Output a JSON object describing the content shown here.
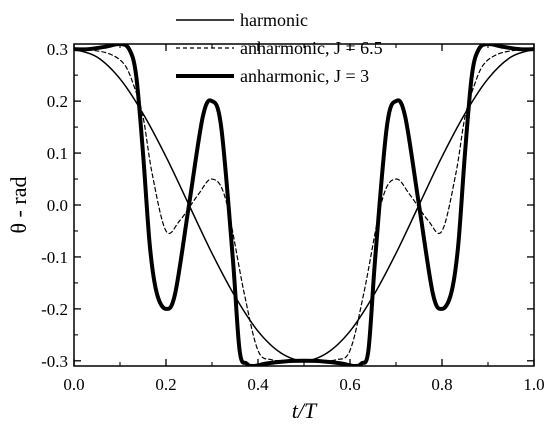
{
  "chart_data": {
    "type": "line",
    "xlabel": "t/T",
    "ylabel": "θ - rad",
    "xlim": [
      0.0,
      1.0
    ],
    "ylim": [
      -0.31,
      0.31
    ],
    "x_ticks": [
      "0.0",
      "0.2",
      "0.4",
      "0.6",
      "0.8",
      "1.0"
    ],
    "x_tick_values": [
      0.0,
      0.2,
      0.4,
      0.6,
      0.8,
      1.0
    ],
    "y_ticks": [
      "0.3",
      "0.2",
      "0.1",
      "0.0",
      "-0.1",
      "-0.2",
      "-0.3"
    ],
    "y_tick_values": [
      0.3,
      0.2,
      0.1,
      0.0,
      -0.1,
      -0.2,
      -0.3
    ],
    "grid": false,
    "legend_position": "top-center",
    "series": [
      {
        "name": "harmonic",
        "style": "solid-thin",
        "x": [
          0.0,
          0.05,
          0.1,
          0.15,
          0.2,
          0.25,
          0.3,
          0.35,
          0.4,
          0.45,
          0.5,
          0.55,
          0.6,
          0.65,
          0.7,
          0.75,
          0.8,
          0.85,
          0.9,
          0.95,
          1.0
        ],
        "y": [
          0.3,
          0.285,
          0.243,
          0.176,
          0.093,
          0.0,
          -0.093,
          -0.176,
          -0.243,
          -0.285,
          -0.3,
          -0.285,
          -0.243,
          -0.176,
          -0.093,
          0.0,
          0.093,
          0.176,
          0.243,
          0.285,
          0.3
        ]
      },
      {
        "name": "anharmonic, J = 6.5",
        "style": "dashed",
        "x": [
          0.0,
          0.04,
          0.08,
          0.11,
          0.13,
          0.15,
          0.17,
          0.2,
          0.23,
          0.27,
          0.3,
          0.33,
          0.37,
          0.4,
          0.43,
          0.47,
          0.5,
          0.53,
          0.57,
          0.6,
          0.63,
          0.67,
          0.7,
          0.73,
          0.77,
          0.8,
          0.83,
          0.85,
          0.87,
          0.89,
          0.92,
          0.96,
          1.0
        ],
        "y": [
          0.3,
          0.298,
          0.29,
          0.27,
          0.23,
          0.17,
          0.06,
          -0.05,
          -0.03,
          0.02,
          0.05,
          0.01,
          -0.17,
          -0.28,
          -0.298,
          -0.3,
          -0.3,
          -0.3,
          -0.298,
          -0.28,
          -0.17,
          0.01,
          0.05,
          0.02,
          -0.03,
          -0.05,
          0.06,
          0.17,
          0.23,
          0.27,
          0.29,
          0.298,
          0.3
        ]
      },
      {
        "name": "anharmonic, J = 3",
        "style": "solid-thick",
        "x": [
          0.0,
          0.03,
          0.07,
          0.1,
          0.12,
          0.135,
          0.15,
          0.165,
          0.18,
          0.2,
          0.22,
          0.25,
          0.28,
          0.3,
          0.32,
          0.345,
          0.36,
          0.375,
          0.39,
          0.42,
          0.46,
          0.5,
          0.54,
          0.58,
          0.61,
          0.625,
          0.64,
          0.655,
          0.68,
          0.7,
          0.72,
          0.75,
          0.78,
          0.8,
          0.82,
          0.835,
          0.85,
          0.865,
          0.88,
          0.9,
          0.93,
          0.97,
          1.0
        ],
        "y": [
          0.3,
          0.3,
          0.305,
          0.31,
          0.3,
          0.25,
          0.1,
          -0.08,
          -0.17,
          -0.2,
          -0.17,
          0.0,
          0.17,
          0.2,
          0.15,
          -0.1,
          -0.28,
          -0.305,
          -0.31,
          -0.305,
          -0.301,
          -0.3,
          -0.301,
          -0.305,
          -0.31,
          -0.305,
          -0.28,
          -0.1,
          0.15,
          0.2,
          0.17,
          0.0,
          -0.17,
          -0.2,
          -0.17,
          -0.08,
          0.1,
          0.25,
          0.3,
          0.31,
          0.305,
          0.3,
          0.3
        ]
      }
    ]
  }
}
